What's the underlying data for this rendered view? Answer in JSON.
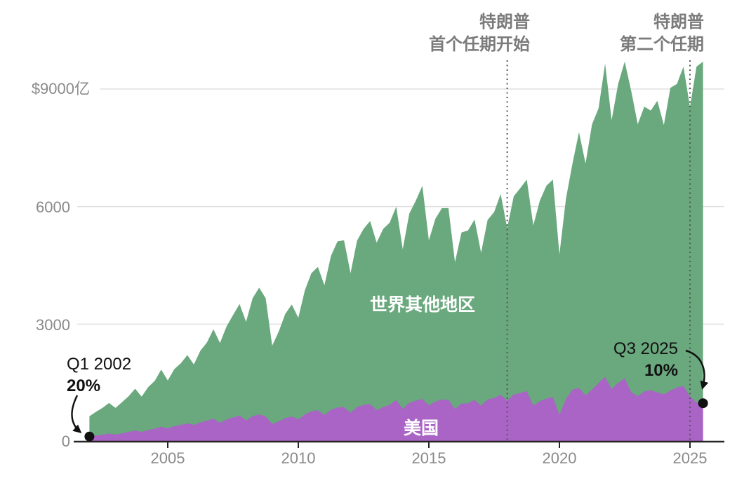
{
  "chart_data": {
    "type": "area",
    "stacked": true,
    "frequency": "quarterly",
    "x_start_year": 2002,
    "x_quarter_step": 0.25,
    "xlim": [
      2002,
      2025.5
    ],
    "ylim": [
      0,
      9000
    ],
    "grid": "horizontal-only",
    "x_ticks_years": [
      2005,
      2010,
      2015,
      2020,
      2025
    ],
    "x_tick_labels": [
      "2005",
      "2010",
      "2015",
      "2020",
      "2025"
    ],
    "y_ticks_values": [
      0,
      3000,
      6000,
      9000
    ],
    "y_tick_labels": [
      "0",
      "3000",
      "6000",
      "$9000亿"
    ],
    "area_labels": {
      "rest_of_world": "世界其他地区",
      "us": "美国"
    },
    "colors": {
      "us": "#a964c5",
      "rest_of_world": "#6aa87e",
      "grid": "#e0e0e0",
      "axis": "#252525",
      "tick_text": "#8a8a8a",
      "annotation_gray_text": "#7b7b7b",
      "annotation_black": "#111111",
      "dotted_line": "#555555",
      "background": "#ffffff"
    },
    "series": [
      {
        "name": "美国",
        "key": "us",
        "color": "#a964c5",
        "values": [
          130,
          156,
          176,
          205,
          181,
          213,
          248,
          285,
          245,
          295,
          330,
          379,
          340,
          396,
          428,
          465,
          430,
          487,
          535,
          585,
          481,
          562,
          617,
          665,
          541,
          648,
          696,
          640,
          451,
          517,
          600,
          642,
          569,
          695,
          774,
          800,
          682,
          811,
          874,
          878,
          740,
          882,
          934,
          962,
          800,
          880,
          940,
          1060,
          835,
          989,
          1046,
          1090,
          925,
          1024,
          1073,
          1068,
          834,
          972,
          981,
          1063,
          916,
          1075,
          1113,
          1196,
          1046,
          1202,
          1242,
          1289,
          920,
          1033,
          1097,
          1134,
          684,
          1090,
          1325,
          1368,
          1180,
          1330,
          1500,
          1650,
          1340,
          1500,
          1620,
          1264,
          1158,
          1279,
          1310,
          1256,
          1207,
          1300,
          1380,
          1420,
          1156,
          1000,
          980
        ]
      },
      {
        "name": "世界其他地区",
        "key": "rest_of_world",
        "color": "#6aa87e",
        "values": [
          520,
          604,
          684,
          780,
          679,
          797,
          912,
          1065,
          905,
          1095,
          1220,
          1461,
          1220,
          1454,
          1572,
          1745,
          1540,
          1833,
          1995,
          2285,
          2039,
          2378,
          2613,
          2845,
          2519,
          3012,
          3234,
          3020,
          1999,
          2293,
          2660,
          2858,
          2591,
          3165,
          3526,
          3660,
          3308,
          3929,
          4236,
          4262,
          3560,
          4248,
          4496,
          4668,
          4280,
          4550,
          4650,
          4940,
          4075,
          4831,
          5104,
          5440,
          4215,
          4666,
          4887,
          4892,
          3746,
          4368,
          4409,
          4607,
          3904,
          4585,
          4747,
          5124,
          4404,
          5058,
          5228,
          5401,
          4600,
          5117,
          5433,
          5556,
          4096,
          5110,
          5775,
          6532,
          5920,
          6770,
          7010,
          8000,
          6870,
          7630,
          8080,
          7686,
          6942,
          7271,
          7140,
          7444,
          6873,
          7730,
          7750,
          8150,
          7384,
          8570,
          8720
        ]
      }
    ],
    "annotations": {
      "trump_first_term": {
        "line1": "特朗普",
        "line2": "首个任期开始",
        "year": 2018.0
      },
      "trump_second_term": {
        "line1": "特朗普",
        "line2": "第二个任期",
        "year": 2025.0
      },
      "start_point": {
        "label": "Q1 2002",
        "share": "20%",
        "year": 2002.0,
        "us_value": 130
      },
      "end_point": {
        "label": "Q3 2025",
        "share": "10%",
        "year": 2025.5,
        "us_value": 980
      }
    }
  }
}
